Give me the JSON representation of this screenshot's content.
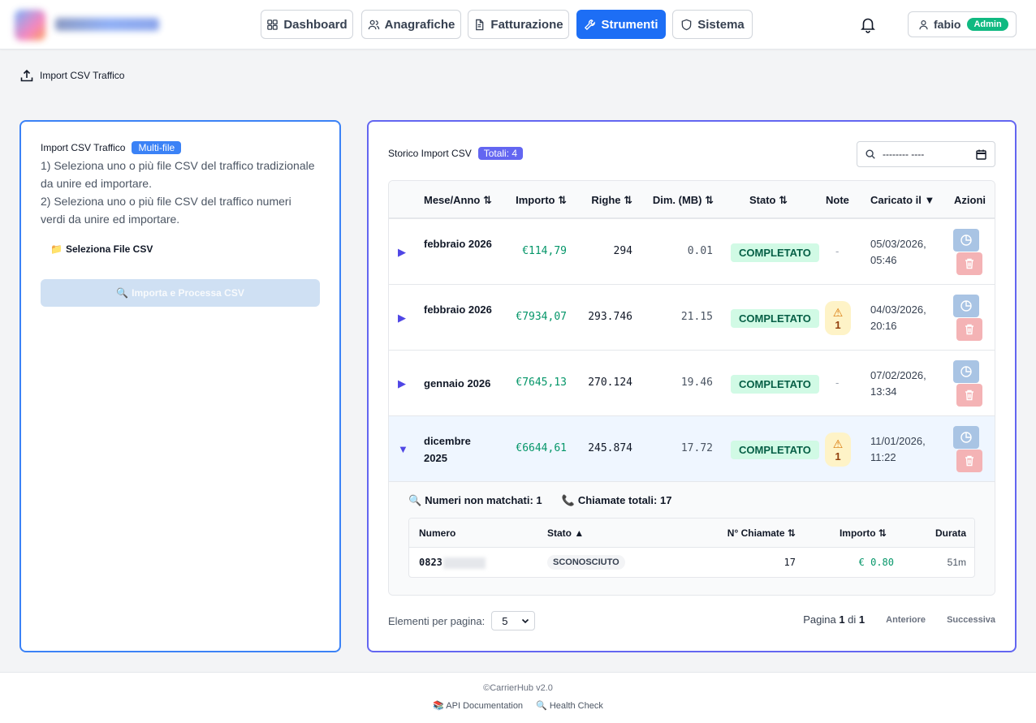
{
  "nav": {
    "items": [
      {
        "label": "Dashboard",
        "icon": "grid-icon"
      },
      {
        "label": "Anagrafiche",
        "icon": "users-icon"
      },
      {
        "label": "Fatturazione",
        "icon": "file-icon"
      },
      {
        "label": "Strumenti",
        "icon": "wrench-icon",
        "active": true
      },
      {
        "label": "Sistema",
        "icon": "shield-icon"
      }
    ],
    "user": {
      "name": "fabio",
      "role": "Admin"
    }
  },
  "breadcrumb": {
    "label": "Import CSV Traffico"
  },
  "import_panel": {
    "title": "Import CSV Traffico",
    "badge": "Multi-file",
    "step1": "1) Seleziona uno o più file CSV del traffico tradizionale da unire ed importare.",
    "step2": "2) Seleziona uno o più file CSV del traffico numeri verdi da unire ed importare.",
    "select_icon": "📁",
    "select_label": "Seleziona File CSV",
    "process_icon": "🔍",
    "process_label": "Importa e Processa CSV"
  },
  "history": {
    "title": "Storico Import CSV",
    "total_badge": "Totali: 4",
    "date_filter_placeholder": "-------- ----",
    "columns": {
      "month": "Mese/Anno ⇅",
      "amount": "Importo ⇅",
      "rows": "Righe ⇅",
      "dim": "Dim. (MB) ⇅",
      "status": "Stato ⇅",
      "note": "Note",
      "uploaded": "Caricato il ▼",
      "actions": "Azioni"
    },
    "rows": [
      {
        "caret": "▶",
        "month": "febbraio 2026",
        "amount": "€114,79",
        "rows": "294",
        "dim": "0.01",
        "status": "COMPLETATO",
        "note": "-",
        "warn_count": "",
        "uploaded_date": "05/03/2026,",
        "uploaded_time": "05:46"
      },
      {
        "caret": "▶",
        "month": "febbraio 2026",
        "amount": "€7934,07",
        "rows": "293.746",
        "dim": "21.15",
        "status": "COMPLETATO",
        "note": "",
        "warn_count": "1",
        "uploaded_date": "04/03/2026,",
        "uploaded_time": "20:16"
      },
      {
        "caret": "▶",
        "month": "gennaio 2026",
        "amount": "€7645,13",
        "rows": "270.124",
        "dim": "19.46",
        "status": "COMPLETATO",
        "note": "-",
        "warn_count": "",
        "uploaded_date": "07/02/2026,",
        "uploaded_time": "13:34"
      },
      {
        "caret": "▼",
        "month": "dicembre 2025",
        "amount": "€6644,61",
        "rows": "245.874",
        "dim": "17.72",
        "status": "COMPLETATO",
        "note": "",
        "warn_count": "1",
        "uploaded_date": "11/01/2026,",
        "uploaded_time": "11:22"
      }
    ],
    "detail": {
      "unmatched_icon": "🔍",
      "unmatched_label": "Numeri non matchati: 1",
      "calls_icon": "📞",
      "calls_label": "Chiamate totali: 17",
      "columns": {
        "numero": "Numero",
        "stato": "Stato ▲",
        "calls": "N° Chiamate ⇅",
        "amount": "Importo ⇅",
        "duration": "Durata"
      },
      "rows": [
        {
          "numero": "0823",
          "stato": "SCONOSCIUTO",
          "calls": "17",
          "amount": "€ 0.80",
          "duration": "51m"
        }
      ]
    },
    "pagination": {
      "per_page_label": "Elementi per pagina:",
      "per_page_value": "5",
      "page_word": "Pagina",
      "page_current": "1",
      "page_of": "di",
      "page_total": "1",
      "prev": "Anteriore",
      "next": "Successiva"
    }
  },
  "footer": {
    "copyright": "©CarrierHub v2.0",
    "api_icon": "📚",
    "api_label": "API Documentation",
    "health_icon": "🔍",
    "health_label": "Health Check"
  },
  "colors": {
    "primary": "#1d6ef5",
    "indigo": "#6366f1",
    "success": "#059669",
    "admin": "#10b981"
  }
}
